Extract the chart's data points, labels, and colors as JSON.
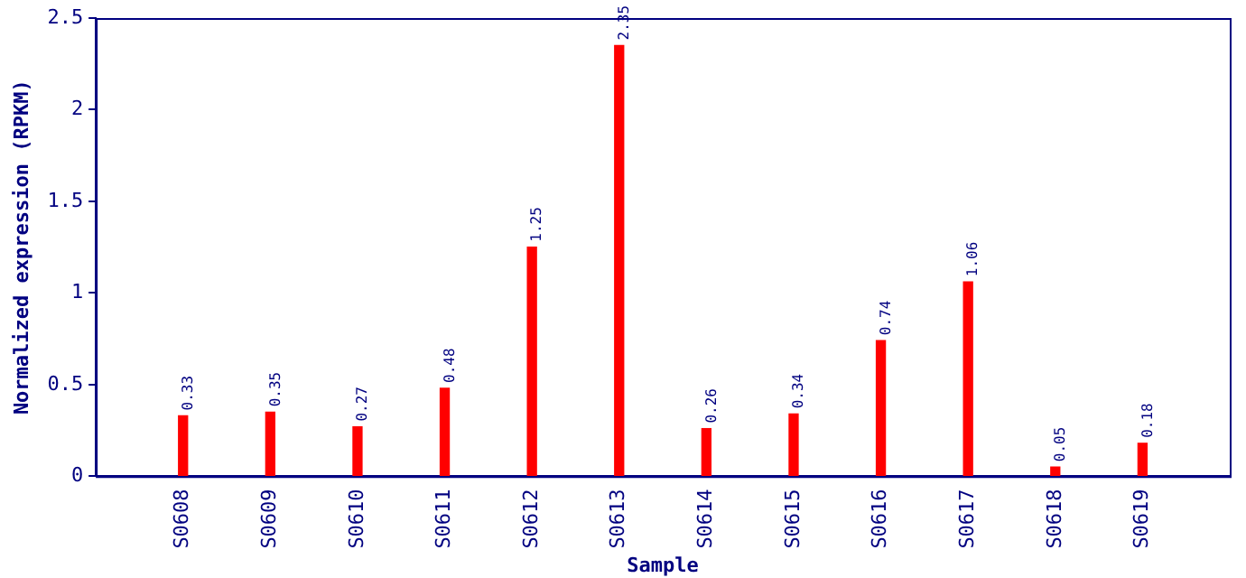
{
  "chart_data": {
    "type": "bar",
    "xlabel": "Sample",
    "ylabel": "Normalized expression (RPKM)",
    "categories": [
      "S0608",
      "S0609",
      "S0610",
      "S0611",
      "S0612",
      "S0613",
      "S0614",
      "S0615",
      "S0616",
      "S0617",
      "S0618",
      "S0619"
    ],
    "values": [
      0.33,
      0.35,
      0.27,
      0.48,
      1.25,
      2.35,
      0.26,
      0.34,
      0.74,
      1.06,
      0.05,
      0.18
    ],
    "color": "#ff0000",
    "ylim": [
      0,
      2.5
    ],
    "yticks": [
      0,
      0.5,
      1,
      1.5,
      2,
      2.5
    ],
    "grid": false,
    "legend": false,
    "data_labels": true
  }
}
